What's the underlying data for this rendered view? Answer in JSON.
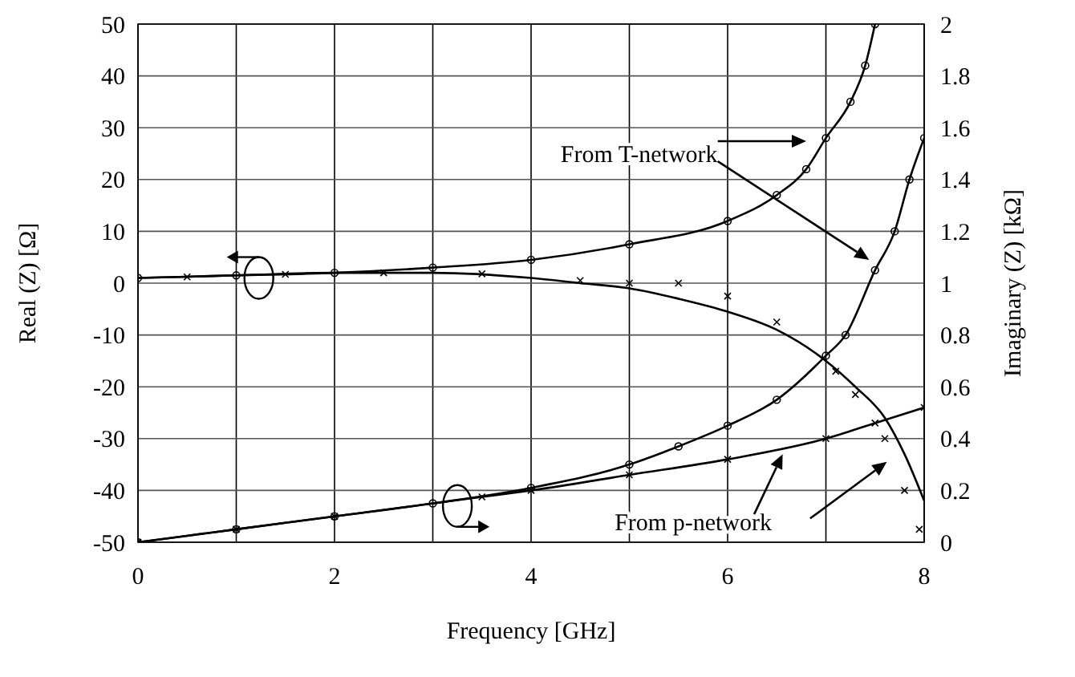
{
  "chart_data": {
    "type": "line",
    "xlabel": "Frequency [GHz]",
    "ylabel": "Real (Z) [Ω]",
    "y2label": "Imaginary (Z) [kΩ]",
    "xlim": [
      0,
      8
    ],
    "xticks": [
      0,
      2,
      4,
      6,
      8
    ],
    "ylim": [
      -50,
      50
    ],
    "yticks": [
      50,
      40,
      30,
      20,
      10,
      0,
      -10,
      -20,
      -30,
      -40,
      -50
    ],
    "y2lim": [
      0,
      2
    ],
    "y2ticks": [
      0,
      0.2,
      0.4,
      0.6,
      0.8,
      1,
      1.2,
      1.4,
      1.6,
      1.8,
      2
    ],
    "grid": true,
    "annotations": [
      "From T-network",
      "From p-network"
    ],
    "series": [
      {
        "color": "#000000",
        "marker": "circle",
        "x": [
          0,
          1,
          2,
          3,
          4,
          5,
          6,
          6.5,
          6.8,
          7,
          7.25,
          7.4,
          7.5
        ],
        "values": [
          1,
          1.5,
          2,
          3,
          4.5,
          7.5,
          12,
          17,
          22,
          28,
          35,
          42,
          50
        ]
      },
      {
        "color": "#000000",
        "marker": "none",
        "x": [
          0,
          1,
          2,
          3,
          4,
          4.5,
          5,
          5.5,
          6,
          6.5,
          7,
          7.3,
          7.6,
          7.8,
          8
        ],
        "values": [
          1,
          1.5,
          2,
          2,
          1,
          0,
          -1,
          -3,
          -5.5,
          -9,
          -15,
          -20,
          -26,
          -33,
          -42
        ]
      },
      {
        "type": "scatter",
        "color": "#000000",
        "marker": "cross",
        "x": [
          0.5,
          1.5,
          2.5,
          3.5,
          4.5,
          5,
          5.5,
          6,
          6.5,
          7.1,
          7.3,
          7.6,
          7.8,
          7.95
        ],
        "values": [
          1.2,
          1.7,
          2,
          1.8,
          0.5,
          0,
          0,
          -2.5,
          -7.5,
          -17,
          -21.5,
          -30,
          -40,
          -47.5
        ]
      },
      {
        "color": "#000000",
        "marker": "circle",
        "axis": "y2",
        "x": [
          0,
          1,
          2,
          3,
          4,
          5,
          5.5,
          6,
          6.5,
          7,
          7.2,
          7.5,
          7.7,
          7.85,
          8
        ],
        "values": [
          0,
          0.05,
          0.1,
          0.15,
          0.21,
          0.3,
          0.37,
          0.45,
          0.55,
          0.72,
          0.8,
          1.05,
          1.2,
          1.4,
          1.56
        ]
      },
      {
        "color": "#000000",
        "marker": "cross",
        "axis": "y2",
        "x": [
          0,
          1,
          2,
          3.5,
          4,
          5,
          6,
          7,
          7.5,
          8
        ],
        "values": [
          0,
          0.05,
          0.1,
          0.175,
          0.2,
          0.26,
          0.32,
          0.4,
          0.46,
          0.52
        ]
      }
    ]
  }
}
